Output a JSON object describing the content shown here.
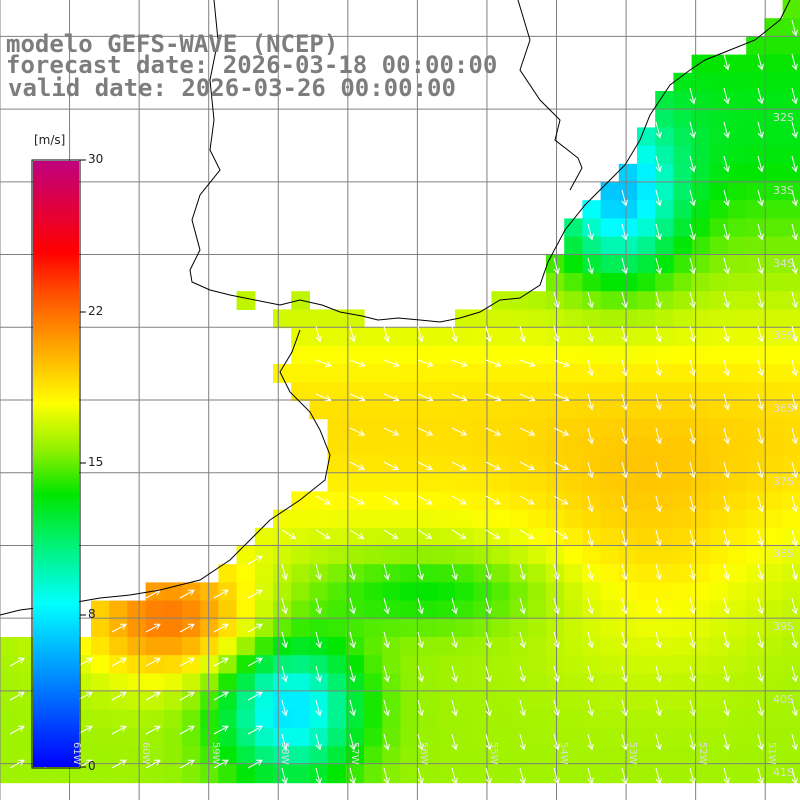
{
  "title": {
    "line1": "modelo GEFS-WAVE (NCEP)",
    "line2": "forecast date: 2026-03-18 00:00:00",
    "line3": "valid date: 2026-03-26 00:00:00"
  },
  "colorbar": {
    "unit": "[m/s]",
    "min": 0,
    "max": 30,
    "ticks": [
      "30",
      "22",
      "15",
      "8",
      "0"
    ]
  },
  "chart_data": {
    "type": "heatmap",
    "variable": "wind speed",
    "unit": "[m/s]",
    "lat_range": [
      -41.5,
      -30.5
    ],
    "lon_range": [
      -62,
      -50.5
    ],
    "lat_labels": [
      "32S",
      "33S",
      "34S",
      "35S",
      "36S",
      "37S",
      "38S",
      "39S",
      "40S",
      "41S"
    ],
    "lon_labels": [
      "61W",
      "60W",
      "59W",
      "58W",
      "57W",
      "56W",
      "55W",
      "54W",
      "53W",
      "52W",
      "51W"
    ]
  }
}
